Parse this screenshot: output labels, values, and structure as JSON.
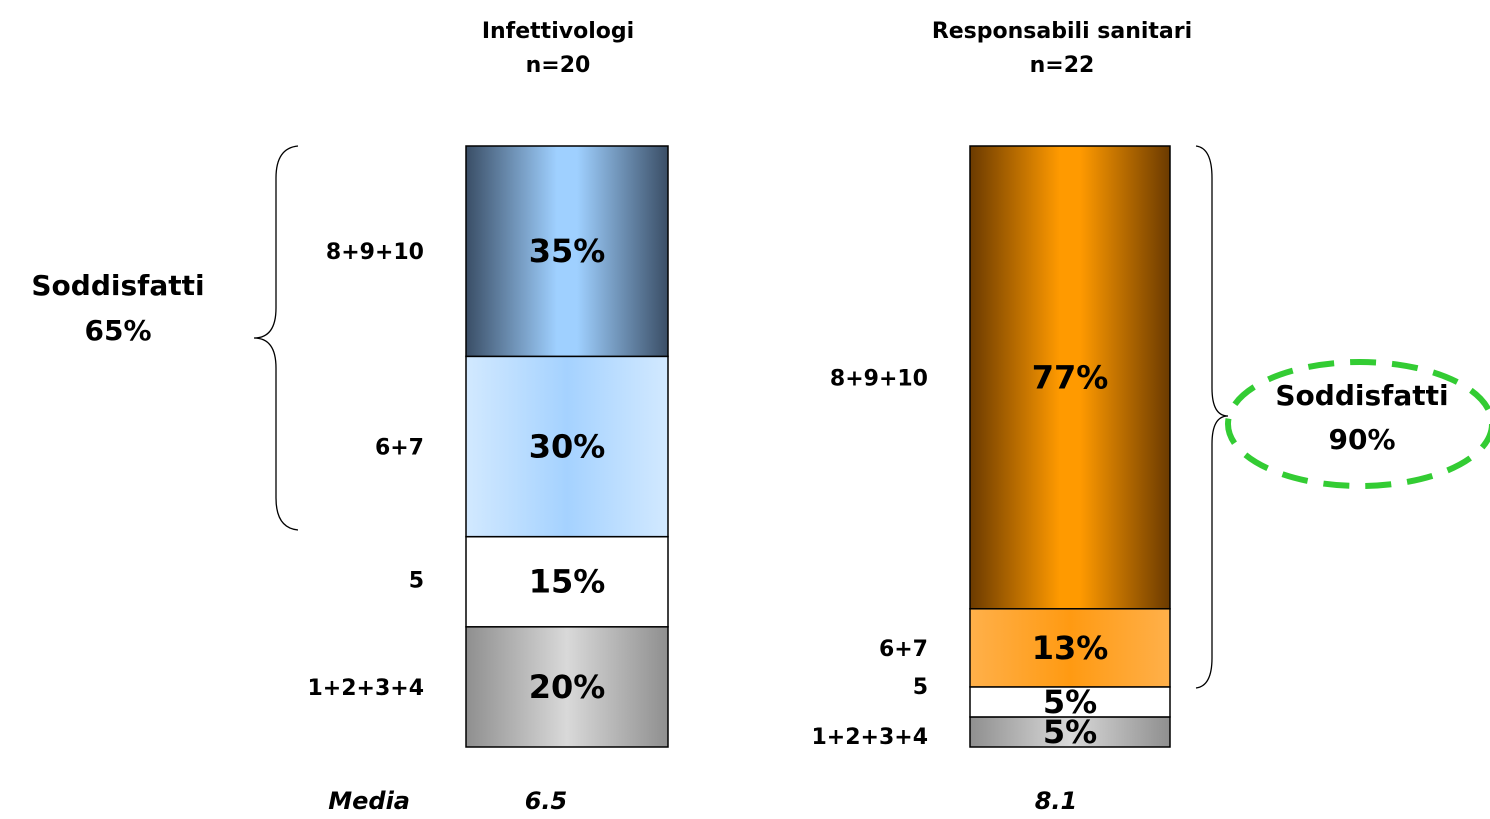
{
  "chart_data": {
    "type": "bar",
    "stacked": true,
    "percent_stacked": true,
    "categories": [
      "Infettivologi",
      "Responsabili sanitari"
    ],
    "column_titles": [
      {
        "title": "Infettivologi",
        "subtitle": "n=20"
      },
      {
        "title": "Responsabili sanitari",
        "subtitle": "n=22"
      }
    ],
    "series": [
      {
        "name": "1+2+3+4",
        "values": [
          20,
          5
        ],
        "labels": [
          "20%",
          "5%"
        ]
      },
      {
        "name": "5",
        "values": [
          15,
          5
        ],
        "labels": [
          "15%",
          "5%"
        ]
      },
      {
        "name": "6+7",
        "values": [
          30,
          13
        ],
        "labels": [
          "30%",
          "13%"
        ]
      },
      {
        "name": "8+9+10",
        "values": [
          35,
          77
        ],
        "labels": [
          "35%",
          "77%"
        ]
      }
    ],
    "satisfied": [
      {
        "label": "Soddisfatti",
        "value": "65%"
      },
      {
        "label": "Soddisfatti",
        "value": "90%"
      }
    ],
    "mean_label": "Media",
    "means": [
      "6.5",
      "8.1"
    ],
    "colors": {
      "group1": {
        "1+2+3+4": "#a8a8a8",
        "5": "#ffffff",
        "6+7": "#b7dcff",
        "8+9+10": "#5b7fa6"
      },
      "group2": {
        "1+2+3+4": "#a8a8a8",
        "5": "#ffffff",
        "6+7": "#ffa42a",
        "8+9+10": "#c86d00"
      },
      "highlight_ellipse": "#33cc33"
    },
    "ylim": [
      0,
      100
    ]
  }
}
